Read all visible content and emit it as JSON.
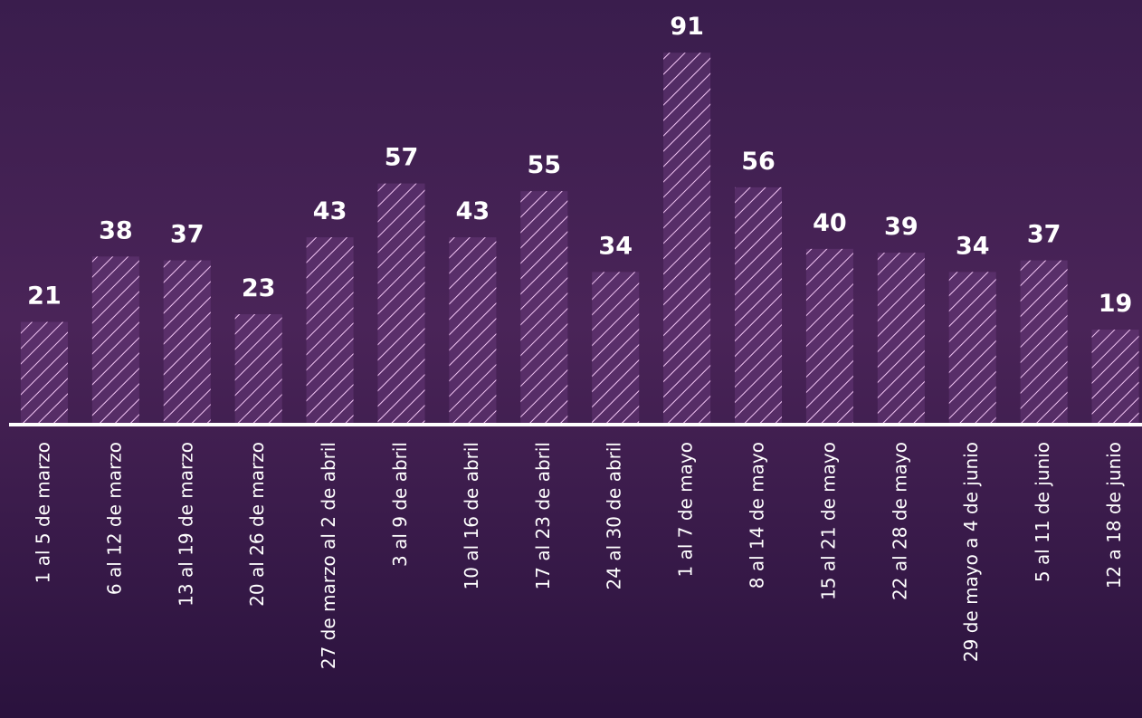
{
  "chart_data": {
    "type": "bar",
    "categories": [
      "1 al 5 de marzo",
      "6 al 12 de marzo",
      "13 al 19 de marzo",
      "20 al 26 de marzo",
      "27 de marzo al 2 de abril",
      "3 al 9 de abril",
      "10 al 16 de abril",
      "17 al 23 de abril",
      "24 al 30 de abril",
      "1 al 7 de mayo",
      "8 al 14 de mayo",
      "15 al 21 de mayo",
      "22 al 28 de mayo",
      "29 de mayo a 4 de junio",
      "5 al 11 de junio",
      "12 a 18 de junio"
    ],
    "values": [
      21,
      38,
      37,
      23,
      43,
      57,
      43,
      55,
      34,
      91,
      56,
      40,
      39,
      34,
      37,
      19
    ],
    "color": "#f3c6f5",
    "ylim": [
      -5.7,
      100
    ]
  }
}
